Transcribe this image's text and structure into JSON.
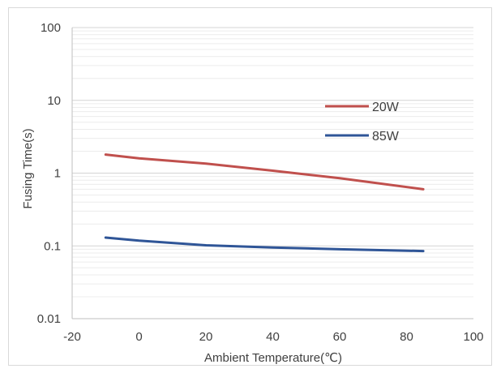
{
  "chart_data": {
    "type": "line",
    "title": "",
    "xlabel": "Ambient Temperature(℃)",
    "ylabel": "Fusing Time(s)",
    "xlim": [
      -20,
      100
    ],
    "ylim": [
      0.01,
      100
    ],
    "yscale": "log",
    "x_ticks": [
      "-20",
      "0",
      "20",
      "40",
      "60",
      "80",
      "100"
    ],
    "y_ticks": [
      "0.01",
      "0.1",
      "1",
      "10",
      "100"
    ],
    "grid": true,
    "legend_position": "inside-top-right",
    "series": [
      {
        "name": "20W",
        "color": "#c0504d",
        "x": [
          -10,
          0,
          20,
          40,
          60,
          85
        ],
        "y": [
          1.8,
          1.6,
          1.35,
          1.08,
          0.85,
          0.6
        ]
      },
      {
        "name": "85W",
        "color": "#2f5597",
        "x": [
          -10,
          0,
          20,
          40,
          60,
          85
        ],
        "y": [
          0.13,
          0.118,
          0.102,
          0.095,
          0.09,
          0.085
        ]
      }
    ]
  }
}
